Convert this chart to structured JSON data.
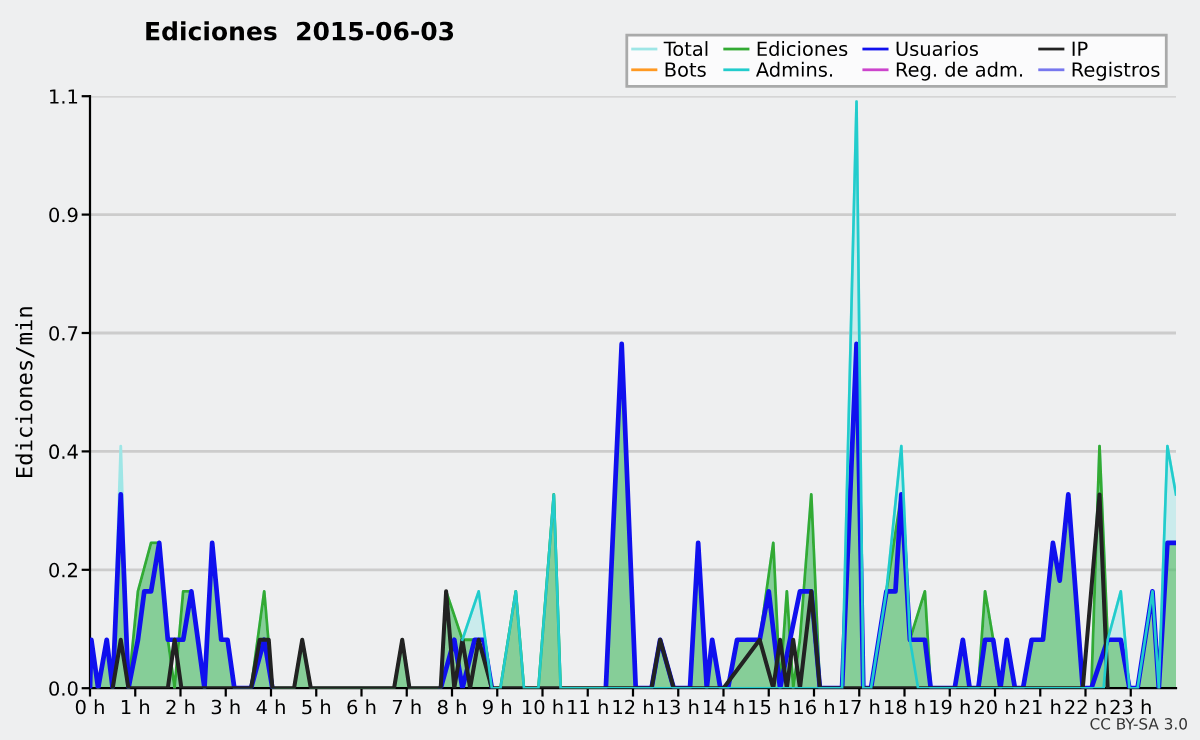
{
  "chart_data": {
    "type": "area",
    "title": "Ediciones  2015-06-03",
    "xlabel": null,
    "ylabel": "Ediciones/min",
    "annotations": [
      "CC BY-SA 3.0"
    ],
    "xlim": [
      0,
      24
    ],
    "ylim": [
      0,
      1.1
    ],
    "xticks": [
      {
        "value": 0,
        "label": "0 h"
      },
      {
        "value": 1,
        "label": "1 h"
      },
      {
        "value": 2,
        "label": "2 h"
      },
      {
        "value": 3,
        "label": "3 h"
      },
      {
        "value": 4,
        "label": "4 h"
      },
      {
        "value": 5,
        "label": "5 h"
      },
      {
        "value": 6,
        "label": "6 h"
      },
      {
        "value": 7,
        "label": "7 h"
      },
      {
        "value": 8,
        "label": "8 h"
      },
      {
        "value": 9,
        "label": "9 h"
      },
      {
        "value": 10,
        "label": "10 h"
      },
      {
        "value": 11,
        "label": "11 h"
      },
      {
        "value": 12,
        "label": "12 h"
      },
      {
        "value": 13,
        "label": "13 h"
      },
      {
        "value": 14,
        "label": "14 h"
      },
      {
        "value": 15,
        "label": "15 h"
      },
      {
        "value": 16,
        "label": "16 h"
      },
      {
        "value": 17,
        "label": "17 h"
      },
      {
        "value": 18,
        "label": "18 h"
      },
      {
        "value": 19,
        "label": "19 h"
      },
      {
        "value": 20,
        "label": "20 h"
      },
      {
        "value": 21,
        "label": "21 h"
      },
      {
        "value": 22,
        "label": "22 h"
      },
      {
        "value": 23,
        "label": "23 h"
      }
    ],
    "yticks": [
      {
        "value": 0,
        "label": "0.0"
      },
      {
        "value": 0.22,
        "label": "0.2"
      },
      {
        "value": 0.44,
        "label": "0.4"
      },
      {
        "value": 0.66,
        "label": "0.7"
      },
      {
        "value": 0.88,
        "label": "0.9"
      },
      {
        "value": 1.1,
        "label": "1.1"
      }
    ],
    "grid": "y",
    "legend": "top right",
    "marker": "none",
    "line_style": "solid",
    "series": [
      {
        "name": "Total",
        "color": "#9ee6e6",
        "x": [
          0,
          0.03,
          0.18,
          0.37,
          0.5,
          0.68,
          0.85,
          1.06,
          1.35,
          1.53,
          1.72,
          1.87,
          2.06,
          2.24,
          2.53,
          2.7,
          2.9,
          3.04,
          3.19,
          3.56,
          3.85,
          4.03,
          4.51,
          4.69,
          4.88,
          6.72,
          6.9,
          7.06,
          7.75,
          7.87,
          8.23,
          8.59,
          8.88,
          9.07,
          9.41,
          9.59,
          9.91,
          10.25,
          10.4,
          11.4,
          11.75,
          12.06,
          12.41,
          12.6,
          12.9,
          13.26,
          13.44,
          13.63,
          13.75,
          13.93,
          14.1,
          14.3,
          14.8,
          15.1,
          15.25,
          15.4,
          15.54,
          15.69,
          15.94,
          16.13,
          16.62,
          16.94,
          17.09,
          17.26,
          17.6,
          17.93,
          18.12,
          18.45,
          18.58,
          19.11,
          19.29,
          19.44,
          19.63,
          19.78,
          19.96,
          20.12,
          20.26,
          20.44,
          20.62,
          20.81,
          21.06,
          21.28,
          21.43,
          21.62,
          21.94,
          22.13,
          22.31,
          22.49,
          22.78,
          22.97,
          23.15,
          23.48,
          23.62,
          23.81,
          24
        ],
        "values": [
          0,
          0.09,
          0,
          0.09,
          0,
          0.45,
          0,
          0.18,
          0.27,
          0.27,
          0.09,
          0,
          0.18,
          0.18,
          0,
          0.27,
          0.09,
          0.09,
          0,
          0,
          0.18,
          0,
          0,
          0.09,
          0,
          0,
          0.09,
          0,
          0,
          0.18,
          0.09,
          0.18,
          0,
          0,
          0.18,
          0,
          0,
          0.36,
          0,
          0,
          0.64,
          0,
          0,
          0.09,
          0,
          0,
          0.27,
          0,
          0.09,
          0,
          0,
          0.09,
          0.09,
          0.27,
          0,
          0.18,
          0,
          0.09,
          0.36,
          0,
          0,
          1.09,
          0,
          0,
          0.18,
          0.45,
          0.09,
          0.18,
          0,
          0,
          0.09,
          0,
          0,
          0.18,
          0.09,
          0,
          0.09,
          0,
          0,
          0.09,
          0.09,
          0.27,
          0.2,
          0.36,
          0,
          0,
          0.45,
          0.09,
          0.18,
          0,
          0,
          0.18,
          0,
          0.45,
          0.36
        ]
      },
      {
        "name": "Ediciones",
        "color": "#33aa33",
        "x": [
          0,
          0.03,
          0.18,
          0.37,
          0.5,
          0.68,
          0.85,
          1.06,
          1.35,
          1.53,
          1.72,
          1.87,
          2.06,
          2.24,
          2.53,
          2.7,
          2.9,
          3.04,
          3.19,
          3.56,
          3.85,
          4.03,
          4.51,
          4.69,
          4.88,
          6.72,
          6.9,
          7.06,
          7.75,
          7.87,
          8.23,
          8.59,
          8.88,
          9.07,
          9.41,
          9.59,
          9.91,
          10.25,
          10.4,
          11.4,
          11.75,
          12.06,
          12.41,
          12.6,
          12.9,
          13.26,
          13.44,
          13.63,
          13.75,
          13.93,
          14.1,
          14.3,
          14.8,
          15.1,
          15.25,
          15.4,
          15.54,
          15.69,
          15.94,
          16.13,
          16.62,
          16.94,
          17.09,
          17.26,
          17.6,
          17.93,
          18.12,
          18.45,
          18.58,
          19.11,
          19.29,
          19.44,
          19.63,
          19.78,
          19.96,
          20.12,
          20.26,
          20.44,
          20.62,
          20.81,
          21.06,
          21.28,
          21.43,
          21.62,
          21.94,
          22.13,
          22.31,
          22.49,
          22.78,
          22.97,
          23.15,
          23.48,
          23.62,
          23.81,
          24
        ],
        "values": [
          0,
          0.09,
          0,
          0.09,
          0,
          0.36,
          0,
          0.18,
          0.27,
          0.27,
          0.09,
          0,
          0.18,
          0.18,
          0,
          0.27,
          0.09,
          0.09,
          0,
          0,
          0.18,
          0,
          0,
          0.09,
          0,
          0,
          0.09,
          0,
          0,
          0.18,
          0.09,
          0.09,
          0,
          0,
          0.18,
          0,
          0,
          0.36,
          0,
          0,
          0.64,
          0,
          0,
          0.09,
          0,
          0,
          0.27,
          0,
          0.09,
          0,
          0,
          0.09,
          0.09,
          0.27,
          0,
          0.18,
          0,
          0.09,
          0.36,
          0,
          0,
          0.64,
          0,
          0,
          0.18,
          0.36,
          0.09,
          0.18,
          0,
          0,
          0.09,
          0,
          0,
          0.18,
          0.09,
          0,
          0.09,
          0,
          0,
          0.09,
          0.09,
          0.27,
          0.2,
          0.36,
          0,
          0,
          0.45,
          0.09,
          0.09,
          0,
          0,
          0.18,
          0,
          0.27,
          0.27
        ]
      },
      {
        "name": "Usuarios",
        "type": "line",
        "color": "#1010ee",
        "x": [
          0,
          0.03,
          0.18,
          0.37,
          0.5,
          0.68,
          0.85,
          1.06,
          1.2,
          1.35,
          1.53,
          1.72,
          1.87,
          2.06,
          2.24,
          2.53,
          2.7,
          2.9,
          3.04,
          3.19,
          3.56,
          3.85,
          4.03,
          5.5,
          7.75,
          8.05,
          8.23,
          8.5,
          8.7,
          8.88,
          9.07,
          9.41,
          9.59,
          9.91,
          10.25,
          10.4,
          11.4,
          11.75,
          12.06,
          12.41,
          12.6,
          12.9,
          13.26,
          13.44,
          13.63,
          13.75,
          13.93,
          14.1,
          14.3,
          14.8,
          15.0,
          15.25,
          15.69,
          15.94,
          16.13,
          16.62,
          16.94,
          17.09,
          17.26,
          17.6,
          17.8,
          17.93,
          18.12,
          18.45,
          18.58,
          19.11,
          19.29,
          19.44,
          19.63,
          19.78,
          19.96,
          20.12,
          20.26,
          20.44,
          20.62,
          20.81,
          21.06,
          21.28,
          21.43,
          21.62,
          21.94,
          22.13,
          22.49,
          22.78,
          22.97,
          23.15,
          23.48,
          23.62,
          23.81,
          24
        ],
        "values": [
          0,
          0.09,
          0,
          0.09,
          0,
          0.36,
          0,
          0.09,
          0.18,
          0.18,
          0.27,
          0.09,
          0.09,
          0.09,
          0.18,
          0,
          0.27,
          0.09,
          0.09,
          0,
          0,
          0.09,
          0,
          null,
          0,
          0.09,
          0,
          0.09,
          0.09,
          0,
          null,
          null,
          null,
          null,
          null,
          null,
          0,
          0.64,
          0,
          0,
          0.09,
          0,
          0,
          0.27,
          0,
          0.09,
          0,
          0,
          0.09,
          0.09,
          0.18,
          0,
          0.18,
          0.18,
          0,
          0,
          0.64,
          0,
          0,
          0.18,
          0.18,
          0.36,
          0.09,
          0.09,
          0,
          0,
          0.09,
          0,
          0,
          0.09,
          0.09,
          0,
          0.09,
          0,
          0,
          0.09,
          0.09,
          0.27,
          0.2,
          0.36,
          0,
          0,
          0.09,
          0.09,
          0,
          0,
          0.18,
          0,
          0.27,
          0.27
        ]
      },
      {
        "name": "IP",
        "type": "line",
        "color": "#222222",
        "x": [
          0.5,
          0.68,
          0.85,
          1.3,
          1.72,
          1.87,
          2.02,
          2.5,
          3.56,
          3.75,
          3.95,
          4.03,
          4.3,
          4.51,
          4.69,
          4.88,
          5.5,
          6.72,
          6.9,
          7.06,
          7.4,
          7.75,
          7.87,
          8.05,
          8.23,
          8.4,
          8.59,
          8.88,
          10,
          12.41,
          12.6,
          12.9,
          14,
          14.8,
          15.1,
          15.25,
          15.4,
          15.54,
          15.69,
          15.94,
          16.13,
          19,
          21.94,
          22.31,
          22.49
        ],
        "values": [
          0,
          0.09,
          0,
          0,
          0,
          0.09,
          0,
          0,
          0,
          0.09,
          0.09,
          0,
          0,
          0,
          0.09,
          0,
          0,
          0,
          0.09,
          0,
          0,
          0,
          0.18,
          0,
          0.09,
          0,
          0.09,
          0,
          0,
          0,
          0.09,
          0,
          0,
          0.09,
          0,
          0.09,
          0,
          0.09,
          0,
          0.18,
          0,
          0,
          0,
          0.36,
          0
        ]
      },
      {
        "name": "Bots",
        "type": "line",
        "color": "#ff9922"
      },
      {
        "name": "Admins.",
        "type": "line",
        "color": "#22cccc",
        "x": [
          8.23,
          8.59,
          8.88,
          9.0,
          9.07,
          9.41,
          9.59,
          9.7,
          9.91,
          10.25,
          10.4,
          13,
          16.62,
          16.94,
          17.09,
          17.2,
          17.26,
          17.6,
          17.93,
          18.12,
          18.3,
          22.4,
          22.49,
          22.78,
          22.97,
          23.15,
          23.48,
          23.62,
          23.81,
          24
        ],
        "values": [
          0.09,
          0.18,
          0,
          0,
          0,
          0.18,
          0,
          0,
          0,
          0.36,
          0,
          0,
          0,
          1.09,
          0,
          0,
          0,
          0.18,
          0.45,
          0.09,
          0,
          0,
          0.09,
          0.18,
          0,
          0,
          0.18,
          0,
          0.45,
          0.36
        ]
      },
      {
        "name": "Reg. de adm.",
        "type": "line",
        "color": "#cc44cc"
      },
      {
        "name": "Registros",
        "type": "line",
        "color": "#7777ee"
      }
    ]
  }
}
